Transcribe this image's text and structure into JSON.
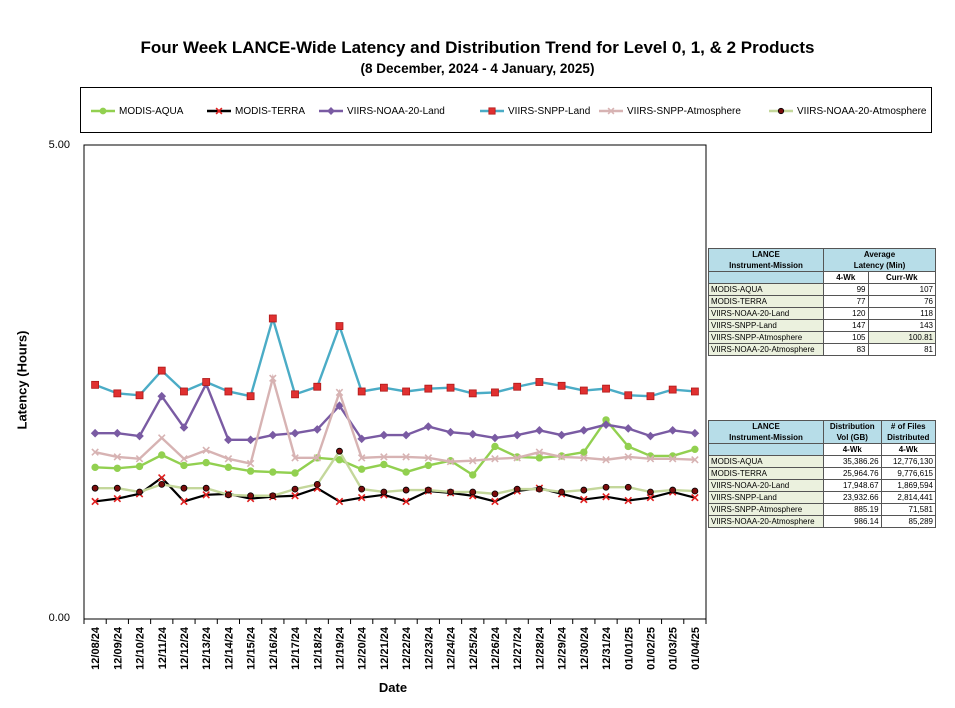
{
  "title": "Four Week LANCE-Wide Latency and Distribution Trend for Level 0, 1, & 2 Products",
  "subtitle": "(8  December,  2024  -  4  January, 2025)",
  "chart_data": {
    "type": "line",
    "title": "Four Week LANCE-Wide Latency and Distribution Trend for Level 0, 1, & 2 Products",
    "subtitle": "(8  December,  2024  -  4  January, 2025)",
    "xlabel": "Date",
    "ylabel": "Latency (Hours)",
    "ylim": [
      0,
      5
    ],
    "ytick_labels": [
      "5.00",
      "0.00"
    ],
    "grid": false,
    "legend": "top",
    "categories": [
      "12/08/24",
      "12/09/24",
      "12/10/24",
      "12/11/24",
      "12/12/24",
      "12/13/24",
      "12/14/24",
      "12/15/24",
      "12/16/24",
      "12/17/24",
      "12/18/24",
      "12/19/24",
      "12/20/24",
      "12/21/24",
      "12/22/24",
      "12/23/24",
      "12/24/24",
      "12/25/24",
      "12/26/24",
      "12/27/24",
      "12/28/24",
      "12/29/24",
      "12/30/24",
      "12/31/24",
      "01/01/25",
      "01/02/25",
      "01/03/25",
      "01/04/25"
    ],
    "series": [
      {
        "name": "MODIS-AQUA",
        "color": "#92d050",
        "marker": "circle",
        "values": [
          1.6,
          1.59,
          1.61,
          1.73,
          1.62,
          1.65,
          1.6,
          1.56,
          1.55,
          1.54,
          1.7,
          1.68,
          1.58,
          1.63,
          1.55,
          1.62,
          1.67,
          1.52,
          1.82,
          1.71,
          1.7,
          1.72,
          1.76,
          2.1,
          1.82,
          1.72,
          1.72,
          1.79
        ]
      },
      {
        "name": "MODIS-TERRA",
        "color": "#000000",
        "marker": "x",
        "values": [
          1.24,
          1.27,
          1.32,
          1.49,
          1.24,
          1.31,
          1.32,
          1.27,
          1.29,
          1.3,
          1.38,
          1.24,
          1.28,
          1.31,
          1.24,
          1.35,
          1.33,
          1.3,
          1.24,
          1.35,
          1.38,
          1.32,
          1.26,
          1.29,
          1.25,
          1.28,
          1.34,
          1.28
        ]
      },
      {
        "name": "VIIRS-NOAA-20-Land",
        "color": "#7a5ba3",
        "marker": "diamond",
        "values": [
          1.96,
          1.96,
          1.93,
          2.35,
          2.02,
          2.48,
          1.89,
          1.89,
          1.94,
          1.96,
          2.0,
          2.25,
          1.9,
          1.94,
          1.94,
          2.03,
          1.97,
          1.95,
          1.91,
          1.94,
          1.99,
          1.94,
          1.99,
          2.05,
          2.01,
          1.93,
          1.99,
          1.96
        ]
      },
      {
        "name": "VIIRS-SNPP-Land",
        "color": "#4bacc6",
        "marker": "square",
        "values": [
          2.47,
          2.38,
          2.36,
          2.62,
          2.4,
          2.5,
          2.4,
          2.35,
          3.17,
          2.37,
          2.45,
          3.09,
          2.4,
          2.44,
          2.4,
          2.43,
          2.44,
          2.38,
          2.39,
          2.45,
          2.5,
          2.46,
          2.41,
          2.43,
          2.36,
          2.35,
          2.42,
          2.4
        ]
      },
      {
        "name": "VIIRS-SNPP-Atmosphere",
        "color": "#d7b3b3",
        "marker": "x",
        "values": [
          1.76,
          1.71,
          1.69,
          1.91,
          1.69,
          1.78,
          1.69,
          1.64,
          2.54,
          1.7,
          1.7,
          2.39,
          1.7,
          1.71,
          1.71,
          1.7,
          1.66,
          1.67,
          1.69,
          1.7,
          1.76,
          1.71,
          1.7,
          1.68,
          1.71,
          1.69,
          1.69,
          1.68
        ]
      },
      {
        "name": "VIIRS-NOAA-20-Atmosphere",
        "color": "#c4d79b",
        "marker": "dot",
        "values": [
          1.38,
          1.38,
          1.34,
          1.42,
          1.38,
          1.38,
          1.31,
          1.3,
          1.3,
          1.37,
          1.42,
          1.77,
          1.37,
          1.34,
          1.36,
          1.36,
          1.34,
          1.34,
          1.32,
          1.37,
          1.37,
          1.34,
          1.36,
          1.39,
          1.39,
          1.34,
          1.36,
          1.35
        ]
      }
    ]
  },
  "latency_table": {
    "col1_header_line1": "LANCE",
    "col1_header_line2": "Instrument-Mission",
    "group_header_line1": "Average",
    "group_header_line2": "Latency (Min)",
    "sub_4wk": "4-Wk",
    "sub_currwk": "Curr-Wk",
    "rows": [
      {
        "name": "MODIS-AQUA",
        "wk4": "99",
        "curr": "107"
      },
      {
        "name": "MODIS-TERRA",
        "wk4": "77",
        "curr": "76"
      },
      {
        "name": "VIIRS-NOAA-20-Land",
        "wk4": "120",
        "curr": "118"
      },
      {
        "name": "VIIRS-SNPP-Land",
        "wk4": "147",
        "curr": "143"
      },
      {
        "name": "VIIRS-SNPP-Atmosphere",
        "wk4": "105",
        "curr": "100.81"
      },
      {
        "name": "VIIRS-NOAA-20-Atmosphere",
        "wk4": "83",
        "curr": "81"
      }
    ]
  },
  "distribution_table": {
    "col1_header_line1": "LANCE",
    "col1_header_line2": "Instrument-Mission",
    "col2_header_line1": "Distribution",
    "col2_header_line2": "Vol (GB)",
    "col3_header_line1": "# of Files",
    "col3_header_line2": "Distributed",
    "sub_4wk": "4-Wk",
    "rows": [
      {
        "name": "MODIS-AQUA",
        "vol": "35,386.26",
        "files": "12,776,130"
      },
      {
        "name": "MODIS-TERRA",
        "vol": "25,964.76",
        "files": "9,776,615"
      },
      {
        "name": "VIIRS-NOAA-20-Land",
        "vol": "17,948.67",
        "files": "1,869,594"
      },
      {
        "name": "VIIRS-SNPP-Land",
        "vol": "23,932.66",
        "files": "2,814,441"
      },
      {
        "name": "VIIRS-SNPP-Atmosphere",
        "vol": "885.19",
        "files": "71,581"
      },
      {
        "name": "VIIRS-NOAA-20-Atmosphere",
        "vol": "986.14",
        "files": "85,289"
      }
    ]
  }
}
